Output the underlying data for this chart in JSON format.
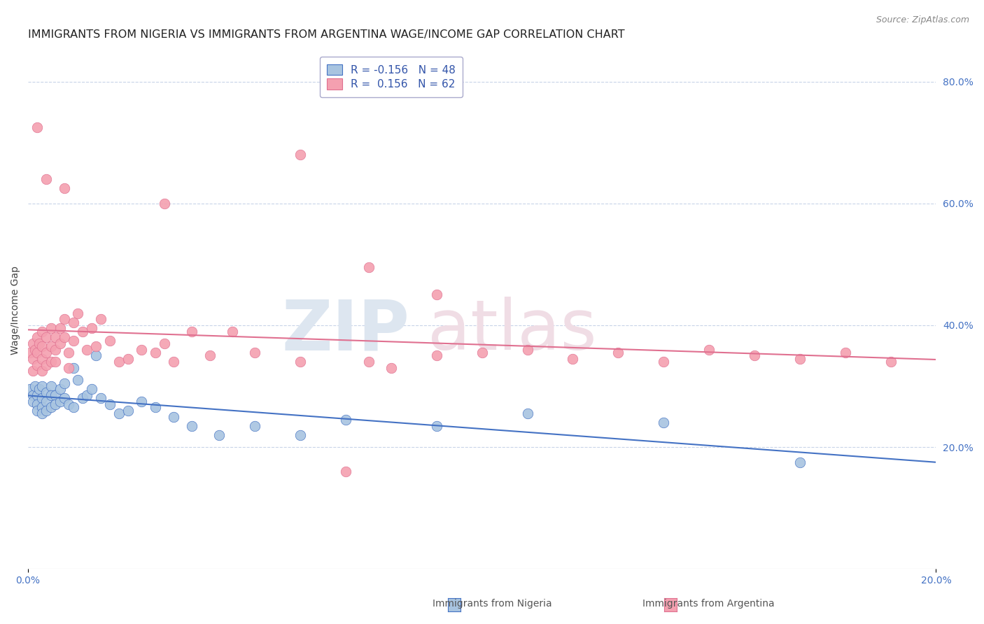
{
  "title": "IMMIGRANTS FROM NIGERIA VS IMMIGRANTS FROM ARGENTINA WAGE/INCOME GAP CORRELATION CHART",
  "source": "Source: ZipAtlas.com",
  "xlabel_nigeria": "Immigrants from Nigeria",
  "xlabel_argentina": "Immigrants from Argentina",
  "ylabel": "Wage/Income Gap",
  "xlim": [
    0.0,
    0.2
  ],
  "ylim": [
    0.0,
    0.85
  ],
  "yticks_right": [
    0.2,
    0.4,
    0.6,
    0.8
  ],
  "ytick_labels_right": [
    "20.0%",
    "40.0%",
    "60.0%",
    "80.0%"
  ],
  "nigeria_R": -0.156,
  "nigeria_N": 48,
  "argentina_R": 0.156,
  "argentina_N": 62,
  "nigeria_color": "#a8c4e0",
  "argentina_color": "#f4a0b0",
  "nigeria_line_color": "#4472c4",
  "argentina_line_color": "#e07090",
  "watermark_zip": "ZIP",
  "watermark_atlas": "atlas",
  "nigeria_x": [
    0.0005,
    0.001,
    0.001,
    0.0015,
    0.002,
    0.002,
    0.002,
    0.0025,
    0.003,
    0.003,
    0.003,
    0.003,
    0.004,
    0.004,
    0.004,
    0.005,
    0.005,
    0.005,
    0.006,
    0.006,
    0.007,
    0.007,
    0.008,
    0.008,
    0.009,
    0.01,
    0.01,
    0.011,
    0.012,
    0.013,
    0.014,
    0.015,
    0.016,
    0.018,
    0.02,
    0.022,
    0.025,
    0.028,
    0.032,
    0.036,
    0.042,
    0.05,
    0.06,
    0.07,
    0.09,
    0.11,
    0.14,
    0.17
  ],
  "nigeria_y": [
    0.295,
    0.285,
    0.275,
    0.3,
    0.285,
    0.27,
    0.26,
    0.295,
    0.3,
    0.28,
    0.265,
    0.255,
    0.29,
    0.275,
    0.26,
    0.3,
    0.285,
    0.265,
    0.285,
    0.27,
    0.295,
    0.275,
    0.305,
    0.28,
    0.27,
    0.33,
    0.265,
    0.31,
    0.28,
    0.285,
    0.295,
    0.35,
    0.28,
    0.27,
    0.255,
    0.26,
    0.275,
    0.265,
    0.25,
    0.235,
    0.22,
    0.235,
    0.22,
    0.245,
    0.235,
    0.255,
    0.24,
    0.175
  ],
  "argentina_x": [
    0.0005,
    0.001,
    0.001,
    0.001,
    0.0015,
    0.002,
    0.002,
    0.002,
    0.0025,
    0.003,
    0.003,
    0.003,
    0.003,
    0.004,
    0.004,
    0.004,
    0.005,
    0.005,
    0.005,
    0.006,
    0.006,
    0.006,
    0.007,
    0.007,
    0.008,
    0.008,
    0.009,
    0.009,
    0.01,
    0.01,
    0.011,
    0.012,
    0.013,
    0.014,
    0.015,
    0.016,
    0.018,
    0.02,
    0.022,
    0.025,
    0.028,
    0.03,
    0.032,
    0.036,
    0.04,
    0.045,
    0.05,
    0.06,
    0.07,
    0.075,
    0.08,
    0.09,
    0.1,
    0.11,
    0.12,
    0.13,
    0.14,
    0.15,
    0.16,
    0.17,
    0.18,
    0.19
  ],
  "argentina_y": [
    0.355,
    0.37,
    0.345,
    0.325,
    0.36,
    0.38,
    0.355,
    0.335,
    0.37,
    0.39,
    0.365,
    0.345,
    0.325,
    0.38,
    0.355,
    0.335,
    0.395,
    0.365,
    0.34,
    0.38,
    0.36,
    0.34,
    0.395,
    0.37,
    0.41,
    0.38,
    0.355,
    0.33,
    0.405,
    0.375,
    0.42,
    0.39,
    0.36,
    0.395,
    0.365,
    0.41,
    0.375,
    0.34,
    0.345,
    0.36,
    0.355,
    0.37,
    0.34,
    0.39,
    0.35,
    0.39,
    0.355,
    0.34,
    0.16,
    0.34,
    0.33,
    0.35,
    0.355,
    0.36,
    0.345,
    0.355,
    0.34,
    0.36,
    0.35,
    0.345,
    0.355,
    0.34
  ],
  "argentina_outliers_x": [
    0.002,
    0.004,
    0.008,
    0.03,
    0.06,
    0.075,
    0.09
  ],
  "argentina_outliers_y": [
    0.725,
    0.64,
    0.625,
    0.6,
    0.68,
    0.495,
    0.45
  ],
  "background_color": "#ffffff",
  "grid_color": "#c8d4e8",
  "title_fontsize": 11.5,
  "axis_label_fontsize": 10,
  "tick_fontsize": 10,
  "legend_fontsize": 11
}
